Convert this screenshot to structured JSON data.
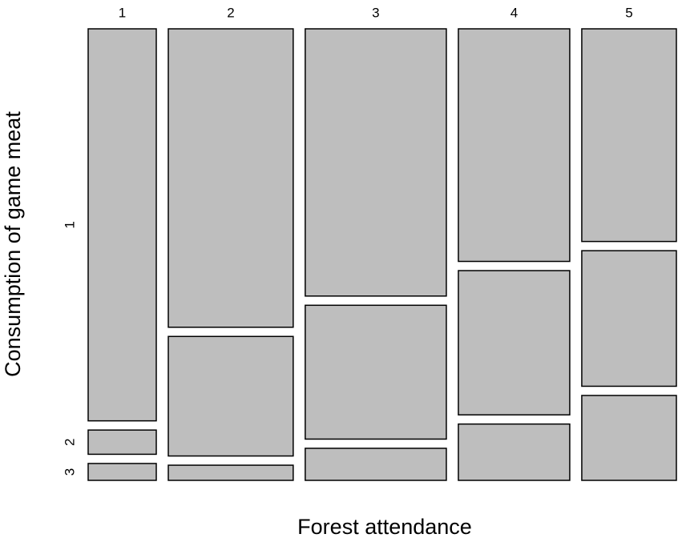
{
  "chart_data": {
    "type": "mosaic",
    "xlabel": "Forest attendance",
    "ylabel": "Consumption of game meat",
    "categories": [
      "1",
      "2",
      "3",
      "4",
      "5"
    ],
    "widths": [
      12.6,
      23.1,
      26.1,
      20.6,
      17.5
    ],
    "series": [
      {
        "name": "1",
        "color": "#bebebe",
        "values": [
          90.6,
          68.9,
          61.7,
          53.7,
          49.1
        ]
      },
      {
        "name": "2",
        "color": "#bebebe",
        "values": [
          5.6,
          27.6,
          30.9,
          33.3,
          31.3
        ]
      },
      {
        "name": "3",
        "color": "#bebebe",
        "values": [
          3.9,
          3.5,
          7.4,
          13.0,
          19.6
        ]
      }
    ]
  }
}
